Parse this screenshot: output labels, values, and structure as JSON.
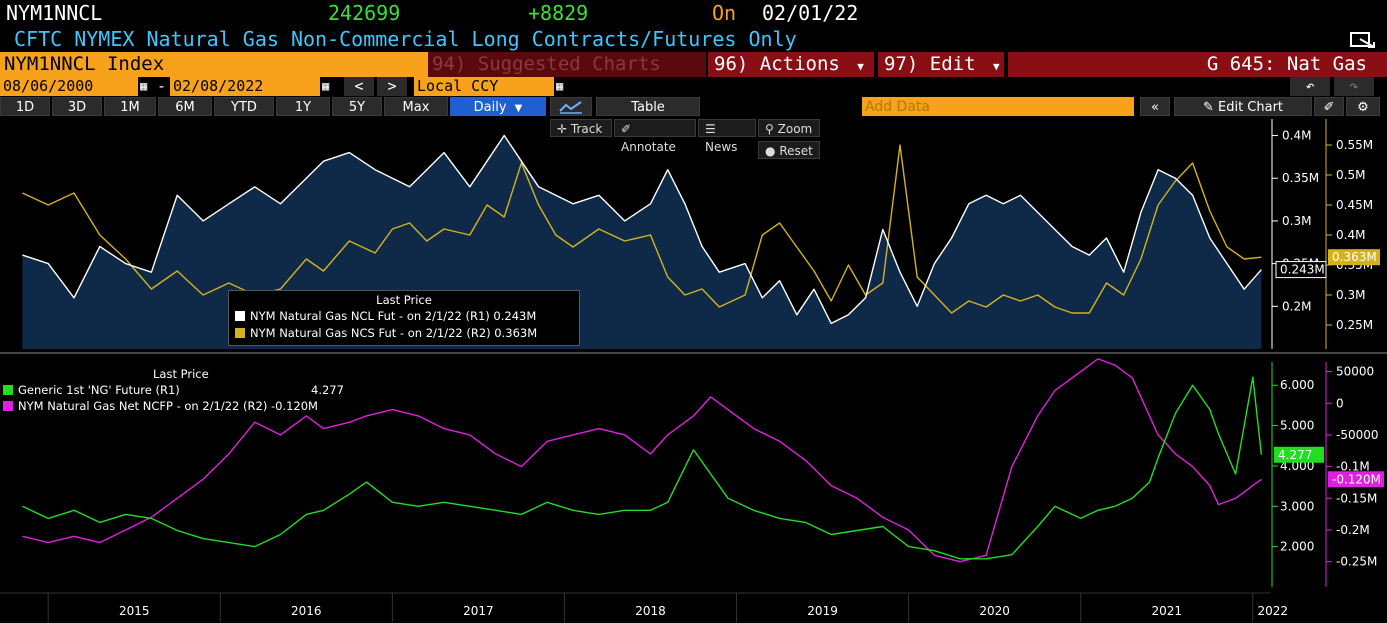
{
  "header": {
    "ticker": "NYM1NNCL",
    "last_value": "242699",
    "change": "+8829",
    "on_label": "On",
    "date": "02/01/22",
    "description": "CFTC NYMEX Natural Gas Non-Commercial Long Contracts/Futures Only"
  },
  "toolbar": {
    "security": "NYM1NNCL Index",
    "suggested": "94) Suggested Charts",
    "actions": "96) Actions",
    "edit": "97) Edit",
    "group": "G 645: Nat Gas"
  },
  "range": {
    "start": "08/06/2000",
    "separator": "-",
    "end": "02/08/2022",
    "currency": "Local CCY",
    "prev": "<",
    "next": ">"
  },
  "periods": [
    "1D",
    "3D",
    "1M",
    "6M",
    "YTD",
    "1Y",
    "5Y",
    "Max"
  ],
  "frequency": "Daily",
  "table_label": "Table",
  "add_data_placeholder": "Add Data",
  "edit_chart": "Edit Chart",
  "mode_buttons": {
    "track": "Track",
    "annotate": "Annotate",
    "news": "News",
    "zoom": "Zoom",
    "reset": "Reset"
  },
  "colors": {
    "white_series": "#ffffff",
    "gold_series": "#d4b21c",
    "green_series": "#22dd22",
    "magenta_series": "#e020e0",
    "area_fill": "#0e2a48",
    "orange": "#f7a21a",
    "dark_red": "#8a0f14"
  },
  "chart_data": [
    {
      "type": "area",
      "legend_title": "Last Price",
      "left_axis_ticks": [
        "0.4M",
        "0.35M",
        "0.3M",
        "0.25M",
        "0.2M"
      ],
      "left_axis_range": [
        0.15,
        0.41
      ],
      "right_axis_ticks": [
        "0.55M",
        "0.5M",
        "0.45M",
        "0.4M",
        "0.35M",
        "0.3M",
        "0.25M"
      ],
      "right_axis_range": [
        0.21,
        0.58
      ],
      "series": [
        {
          "name": "NYM Natural Gas NCL Fut",
          "legend": "NYM Natural Gas NCL Fut -  on 2/1/22  (R1) 0.243M",
          "last_label": "0.243M",
          "axis": "left",
          "x": [
            2014.85,
            2015.0,
            2015.15,
            2015.3,
            2015.45,
            2015.6,
            2015.75,
            2015.9,
            2016.05,
            2016.2,
            2016.35,
            2016.5,
            2016.6,
            2016.75,
            2016.9,
            2017.0,
            2017.1,
            2017.2,
            2017.3,
            2017.45,
            2017.55,
            2017.65,
            2017.75,
            2017.85,
            2017.95,
            2018.05,
            2018.2,
            2018.35,
            2018.5,
            2018.6,
            2018.7,
            2018.8,
            2018.9,
            2019.05,
            2019.15,
            2019.25,
            2019.35,
            2019.45,
            2019.55,
            2019.65,
            2019.75,
            2019.85,
            2019.95,
            2020.05,
            2020.15,
            2020.25,
            2020.35,
            2020.45,
            2020.55,
            2020.65,
            2020.75,
            2020.85,
            2020.95,
            2021.05,
            2021.15,
            2021.25,
            2021.35,
            2021.45,
            2021.55,
            2021.65,
            2021.75,
            2021.85,
            2021.95,
            2022.05
          ],
          "values": [
            0.26,
            0.25,
            0.21,
            0.27,
            0.25,
            0.24,
            0.33,
            0.3,
            0.32,
            0.34,
            0.32,
            0.35,
            0.37,
            0.38,
            0.36,
            0.35,
            0.34,
            0.36,
            0.38,
            0.34,
            0.37,
            0.4,
            0.37,
            0.34,
            0.33,
            0.32,
            0.33,
            0.3,
            0.32,
            0.36,
            0.32,
            0.27,
            0.24,
            0.25,
            0.21,
            0.23,
            0.19,
            0.22,
            0.18,
            0.19,
            0.21,
            0.29,
            0.24,
            0.2,
            0.25,
            0.28,
            0.32,
            0.33,
            0.32,
            0.33,
            0.31,
            0.29,
            0.27,
            0.26,
            0.28,
            0.24,
            0.31,
            0.36,
            0.35,
            0.33,
            0.28,
            0.25,
            0.22,
            0.243
          ]
        },
        {
          "name": "NYM Natural Gas NCS Fut",
          "legend": "NYM Natural Gas NCS Fut -  on 2/1/22  (R2) 0.363M",
          "last_label": "0.363M",
          "axis": "right",
          "x": [
            2014.85,
            2015.0,
            2015.15,
            2015.3,
            2015.45,
            2015.6,
            2015.75,
            2015.9,
            2016.05,
            2016.2,
            2016.35,
            2016.5,
            2016.6,
            2016.75,
            2016.9,
            2017.0,
            2017.1,
            2017.2,
            2017.3,
            2017.45,
            2017.55,
            2017.65,
            2017.75,
            2017.85,
            2017.95,
            2018.05,
            2018.2,
            2018.35,
            2018.5,
            2018.6,
            2018.7,
            2018.8,
            2018.9,
            2019.05,
            2019.15,
            2019.25,
            2019.35,
            2019.45,
            2019.55,
            2019.65,
            2019.75,
            2019.85,
            2019.95,
            2020.05,
            2020.15,
            2020.25,
            2020.35,
            2020.45,
            2020.55,
            2020.65,
            2020.75,
            2020.85,
            2020.95,
            2021.05,
            2021.15,
            2021.25,
            2021.35,
            2021.45,
            2021.55,
            2021.65,
            2021.75,
            2021.85,
            2021.95,
            2022.05
          ],
          "values": [
            0.47,
            0.45,
            0.47,
            0.4,
            0.36,
            0.31,
            0.34,
            0.3,
            0.32,
            0.3,
            0.31,
            0.36,
            0.34,
            0.39,
            0.37,
            0.41,
            0.42,
            0.39,
            0.41,
            0.4,
            0.45,
            0.43,
            0.52,
            0.45,
            0.4,
            0.38,
            0.41,
            0.39,
            0.4,
            0.33,
            0.3,
            0.31,
            0.28,
            0.3,
            0.4,
            0.42,
            0.38,
            0.34,
            0.29,
            0.35,
            0.3,
            0.32,
            0.55,
            0.33,
            0.3,
            0.27,
            0.29,
            0.28,
            0.3,
            0.29,
            0.3,
            0.28,
            0.27,
            0.27,
            0.32,
            0.3,
            0.36,
            0.45,
            0.49,
            0.52,
            0.44,
            0.38,
            0.36,
            0.363
          ]
        }
      ]
    },
    {
      "type": "line",
      "legend_title": "Last Price",
      "x_ticks": [
        "2015",
        "2016",
        "2017",
        "2018",
        "2019",
        "2020",
        "2021",
        "2022"
      ],
      "left_axis_ticks": [
        "6.000",
        "5.000",
        "4.000",
        "3.000",
        "2.000"
      ],
      "left_axis_range": [
        1.0,
        6.7
      ],
      "right_axis_ticks": [
        "50000",
        "0",
        "-50000",
        "-0.1M",
        "-0.15M",
        "-0.2M",
        "-0.25M"
      ],
      "right_axis_range": [
        -0.29,
        0.073
      ],
      "series": [
        {
          "name": "Generic 1st 'NG' Future",
          "legend": "Generic 1st 'NG' Future  (R1)",
          "legend_value": "4.277",
          "last_label": "4.277",
          "axis": "left",
          "x": [
            2014.85,
            2015.0,
            2015.15,
            2015.3,
            2015.45,
            2015.6,
            2015.75,
            2015.9,
            2016.05,
            2016.2,
            2016.35,
            2016.5,
            2016.6,
            2016.75,
            2016.85,
            2017.0,
            2017.15,
            2017.3,
            2017.45,
            2017.6,
            2017.75,
            2017.9,
            2018.05,
            2018.2,
            2018.35,
            2018.5,
            2018.6,
            2018.75,
            2018.85,
            2018.95,
            2019.1,
            2019.25,
            2019.4,
            2019.55,
            2019.7,
            2019.85,
            2020.0,
            2020.15,
            2020.3,
            2020.45,
            2020.6,
            2020.75,
            2020.85,
            2021.0,
            2021.1,
            2021.2,
            2021.3,
            2021.4,
            2021.45,
            2021.55,
            2021.65,
            2021.75,
            2021.8,
            2021.9,
            2021.95,
            2022.0,
            2022.05
          ],
          "values": [
            3.0,
            2.7,
            2.9,
            2.6,
            2.8,
            2.7,
            2.4,
            2.2,
            2.1,
            2.0,
            2.3,
            2.8,
            2.9,
            3.3,
            3.6,
            3.1,
            3.0,
            3.1,
            3.0,
            2.9,
            2.8,
            3.1,
            2.9,
            2.8,
            2.9,
            2.9,
            3.1,
            4.4,
            3.8,
            3.2,
            2.9,
            2.7,
            2.6,
            2.3,
            2.4,
            2.5,
            2.0,
            1.9,
            1.7,
            1.7,
            1.8,
            2.5,
            3.0,
            2.7,
            2.9,
            3.0,
            3.2,
            3.6,
            4.2,
            5.3,
            6.0,
            5.4,
            4.8,
            3.8,
            5.0,
            6.2,
            4.277
          ]
        },
        {
          "name": "NYM Natural Gas Net NCFP",
          "legend": "NYM Natural Gas Net NCFP -  on 2/1/22  (R2) -0.120M",
          "last_label": "-0.120M",
          "axis": "right",
          "x": [
            2014.85,
            2015.0,
            2015.15,
            2015.3,
            2015.45,
            2015.6,
            2015.75,
            2015.9,
            2016.05,
            2016.2,
            2016.35,
            2016.5,
            2016.6,
            2016.75,
            2016.85,
            2017.0,
            2017.15,
            2017.3,
            2017.45,
            2017.6,
            2017.75,
            2017.9,
            2018.05,
            2018.2,
            2018.35,
            2018.5,
            2018.6,
            2018.75,
            2018.85,
            2018.95,
            2019.1,
            2019.25,
            2019.4,
            2019.55,
            2019.7,
            2019.85,
            2020.0,
            2020.15,
            2020.3,
            2020.45,
            2020.6,
            2020.75,
            2020.85,
            2021.0,
            2021.1,
            2021.2,
            2021.3,
            2021.4,
            2021.45,
            2021.55,
            2021.65,
            2021.75,
            2021.8,
            2021.9,
            2021.95,
            2022.0,
            2022.05
          ],
          "values": [
            -0.21,
            -0.22,
            -0.21,
            -0.22,
            -0.2,
            -0.18,
            -0.15,
            -0.12,
            -0.08,
            -0.03,
            -0.05,
            -0.02,
            -0.04,
            -0.03,
            -0.02,
            -0.01,
            -0.02,
            -0.04,
            -0.05,
            -0.08,
            -0.1,
            -0.06,
            -0.05,
            -0.04,
            -0.05,
            -0.08,
            -0.05,
            -0.02,
            0.01,
            -0.01,
            -0.04,
            -0.06,
            -0.09,
            -0.13,
            -0.15,
            -0.18,
            -0.2,
            -0.24,
            -0.25,
            -0.24,
            -0.1,
            -0.02,
            0.02,
            0.05,
            0.07,
            0.06,
            0.04,
            -0.02,
            -0.05,
            -0.08,
            -0.1,
            -0.13,
            -0.16,
            -0.15,
            -0.14,
            -0.13,
            -0.12
          ]
        }
      ]
    }
  ]
}
